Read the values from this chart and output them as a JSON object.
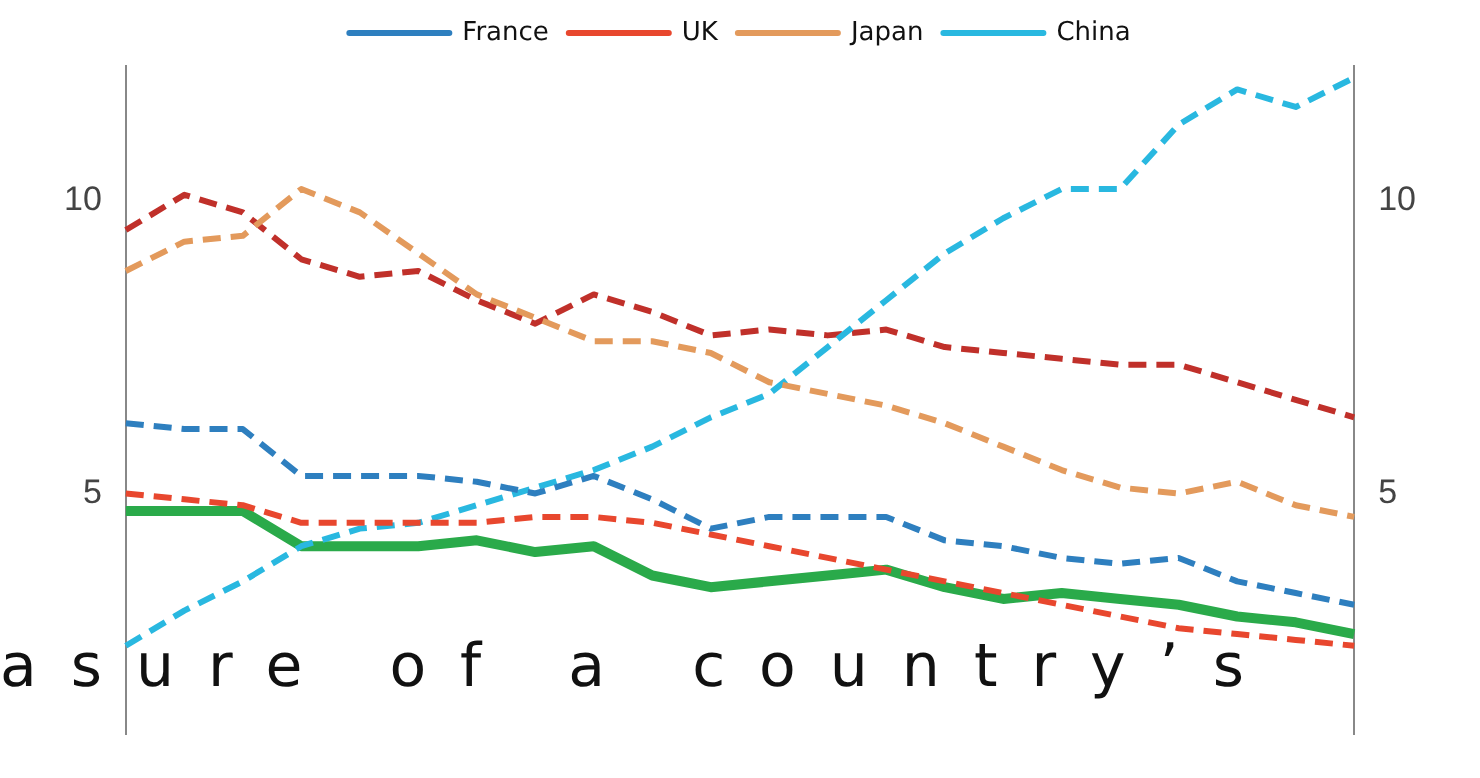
{
  "chart_data": {
    "type": "line",
    "categories": [
      null,
      null,
      null,
      null,
      null,
      null,
      null,
      null,
      null,
      null,
      null,
      null,
      null,
      null,
      null,
      null,
      null,
      null,
      null,
      null,
      null,
      null
    ],
    "series": [
      {
        "name": "France",
        "color": "#2e7fbf",
        "line_style": "dashed",
        "values": [
          6.2,
          6.1,
          6.1,
          5.3,
          5.3,
          5.3,
          5.2,
          5.0,
          5.3,
          4.9,
          4.4,
          4.6,
          4.6,
          4.6,
          4.2,
          4.1,
          3.9,
          3.8,
          3.9,
          3.5,
          3.3,
          3.1
        ]
      },
      {
        "name": "UK",
        "color": "#e8472e",
        "line_style": "dashed",
        "values": [
          5.0,
          4.9,
          4.8,
          4.5,
          4.5,
          4.5,
          4.5,
          4.6,
          4.6,
          4.5,
          4.3,
          4.1,
          3.9,
          3.7,
          3.5,
          3.3,
          3.1,
          2.9,
          2.7,
          2.6,
          2.5,
          2.4
        ]
      },
      {
        "name": "Japan",
        "color": "#e39a5c",
        "line_style": "dashed",
        "values": [
          8.8,
          9.3,
          9.4,
          10.2,
          9.8,
          9.1,
          8.4,
          8.0,
          7.6,
          7.6,
          7.4,
          6.9,
          6.7,
          6.5,
          6.2,
          5.8,
          5.4,
          5.1,
          5.0,
          5.2,
          4.8,
          4.6
        ]
      },
      {
        "name": "China",
        "color": "#29b8e0",
        "line_style": "dashed",
        "values": [
          2.4,
          3.0,
          3.5,
          4.1,
          4.4,
          4.5,
          4.8,
          5.1,
          5.4,
          5.8,
          6.3,
          6.7,
          7.5,
          8.3,
          9.1,
          9.7,
          10.2,
          10.2,
          11.3,
          11.9,
          11.6,
          12.1
        ]
      },
      {
        "color": "#c0302a",
        "line_style": "dashed",
        "values": [
          9.5,
          10.1,
          9.8,
          9.0,
          8.7,
          8.8,
          8.3,
          7.9,
          8.4,
          8.1,
          7.7,
          7.8,
          7.7,
          7.8,
          7.5,
          7.4,
          7.3,
          7.2,
          7.2,
          6.9,
          6.6,
          6.3
        ]
      },
      {
        "color": "#2aaa4a",
        "line_style": "solid",
        "values": [
          4.7,
          4.7,
          4.7,
          4.1,
          4.1,
          4.1,
          4.2,
          4.0,
          4.1,
          3.6,
          3.4,
          3.5,
          3.6,
          3.7,
          3.4,
          3.2,
          3.3,
          3.2,
          3.1,
          2.9,
          2.8,
          2.6
        ]
      }
    ],
    "ylim": [
      0.9,
      12.3
    ],
    "yticks": [
      5,
      10
    ],
    "y2lim": [
      0.9,
      12.3
    ],
    "y2ticks": [
      5,
      10
    ],
    "tick_labels": "y",
    "grid": false,
    "legend": "top",
    "marker": "none",
    "annotations": [
      "asure of a country’s"
    ]
  }
}
